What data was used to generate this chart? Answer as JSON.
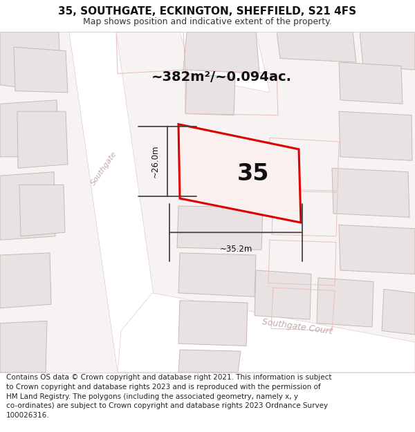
{
  "title": "35, SOUTHGATE, ECKINGTON, SHEFFIELD, S21 4FS",
  "subtitle": "Map shows position and indicative extent of the property.",
  "footer": "Contains OS data © Crown copyright and database right 2021. This information is subject\nto Crown copyright and database rights 2023 and is reproduced with the permission of\nHM Land Registry. The polygons (including the associated geometry, namely x, y\nco-ordinates) are subject to Crown copyright and database rights 2023 Ordnance Survey\n100026316.",
  "area_label": "~382m²/~0.094ac.",
  "property_label": "35",
  "dim_width_label": "~35.2m",
  "dim_height_label": "~26.0m",
  "map_bg": "#f8f3f3",
  "building_fill": "#e8e2e2",
  "building_edge": "#c8b8b8",
  "road_fill": "#ffffff",
  "road_edge": "#e0cccc",
  "plot_outline": "#e8c0c0",
  "plot_fill": "#ffffff",
  "prop_fill": "#faf0f0",
  "prop_edge": "#dd0000",
  "road_label_color": "#c0aaaa",
  "dim_color": "#444444",
  "title_fontsize": 11,
  "subtitle_fontsize": 9,
  "footer_fontsize": 7.5,
  "prop_label_fontsize": 24,
  "area_fontsize": 14
}
